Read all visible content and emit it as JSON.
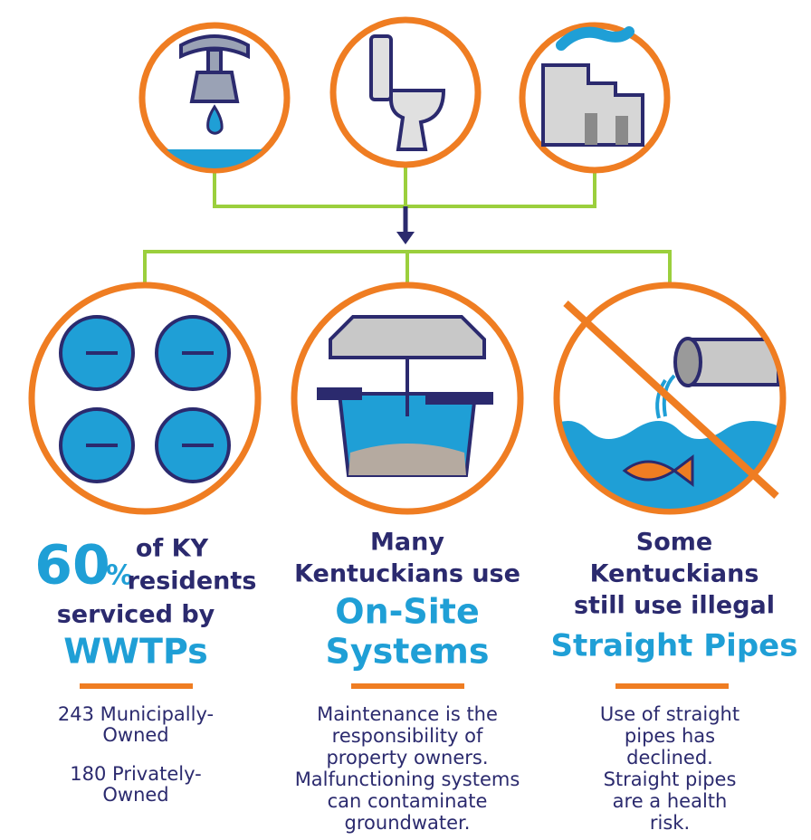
{
  "columns": [
    {
      "stat": "60",
      "stat_unit": "%",
      "heading": [
        "of KY",
        "residents",
        "serviced by"
      ],
      "highlight": [
        "WWTPs"
      ],
      "details": [
        [
          "243 Municipally-",
          "Owned"
        ],
        [
          "180 Privately-",
          "Owned"
        ]
      ]
    },
    {
      "heading": [
        "Many",
        "Kentuckians use"
      ],
      "highlight": [
        "On-Site",
        "Systems"
      ],
      "details": [
        [
          "Maintenance is the",
          "responsibility of",
          "property owners.",
          "Malfunctioning systems",
          "can contaminate",
          "groundwater."
        ]
      ]
    },
    {
      "heading": [
        "Some",
        "Kentuckians",
        "still use illegal"
      ],
      "highlight": [
        "Straight Pipes"
      ],
      "details": [
        [
          "Use of straight",
          "pipes has",
          "declined.",
          "Straight pipes",
          "are a health",
          "risk."
        ]
      ]
    }
  ]
}
